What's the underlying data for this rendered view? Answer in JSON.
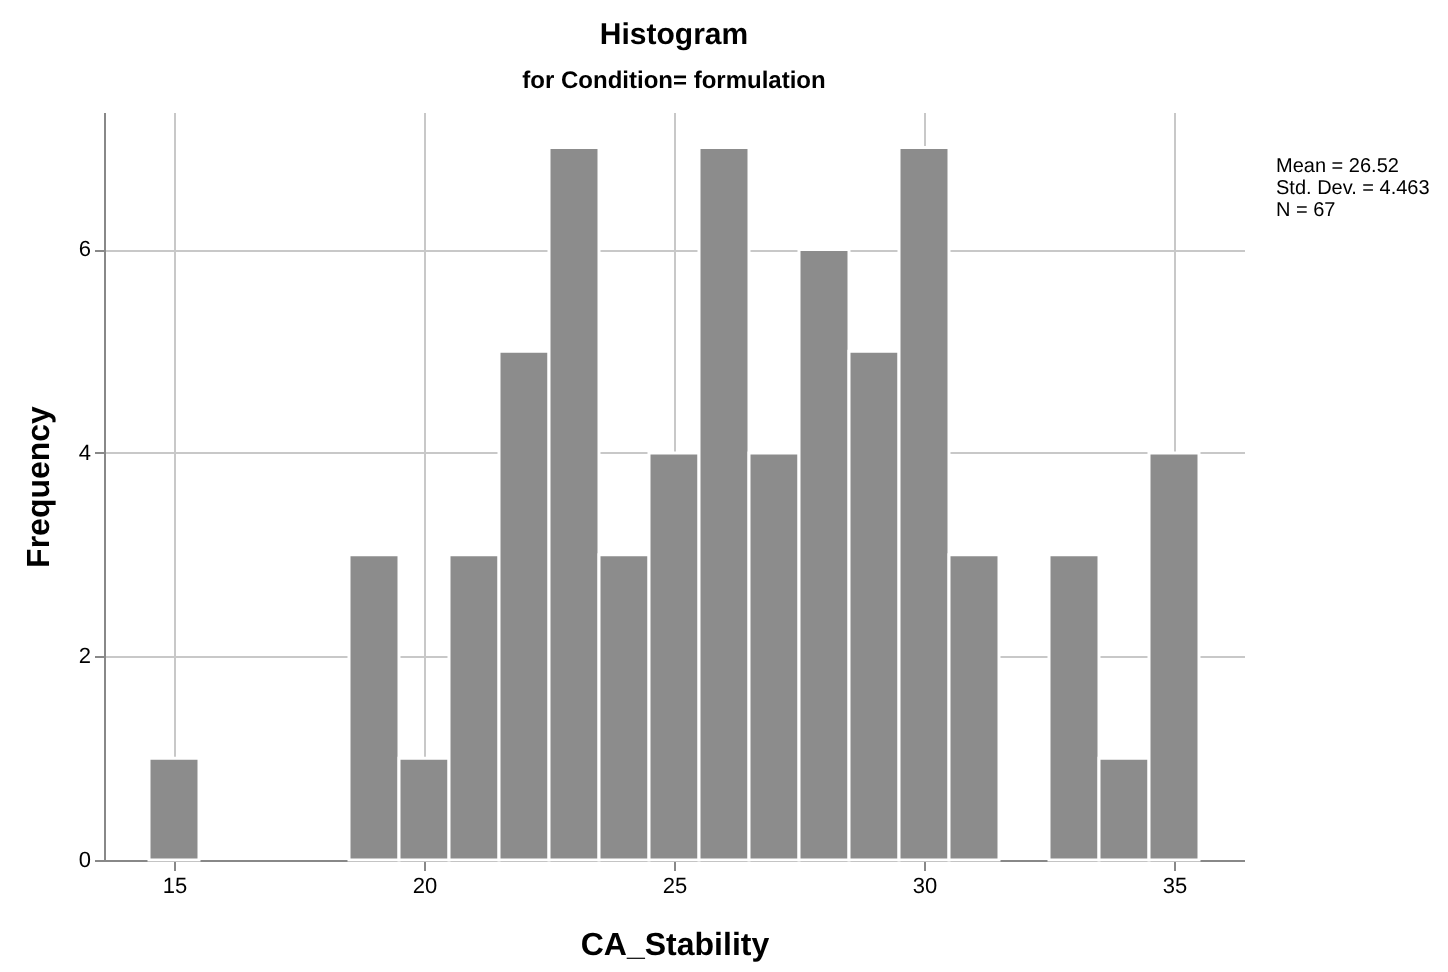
{
  "chart_data": {
    "type": "histogram",
    "title": "Histogram",
    "subtitle": "for Condition= formulation",
    "xlabel": "CA_Stability",
    "ylabel": "Frequency",
    "bins": [
      14.5,
      15.5,
      18.5,
      19.5,
      20.5,
      21.5,
      22.5,
      23.5,
      24.5,
      25.5,
      26.5,
      27.5,
      28.5,
      29.5,
      30.5,
      31.5,
      32.5,
      33.5,
      34.5,
      35.5
    ],
    "values": [
      1,
      0,
      3,
      1,
      3,
      5,
      7,
      3,
      4,
      7,
      4,
      6,
      5,
      7,
      3,
      0,
      3,
      1,
      4
    ],
    "color": "#8c8c8c",
    "xlim": [
      13.6,
      36.4
    ],
    "xticks": [
      15,
      20,
      25,
      30,
      35
    ],
    "ylim": [
      0,
      7.35
    ],
    "yticks": [
      0,
      2,
      4,
      6
    ],
    "grid": true,
    "annotations": [
      "Mean = 26.52",
      "Std. Dev. = 4.463",
      "N = 67"
    ]
  }
}
